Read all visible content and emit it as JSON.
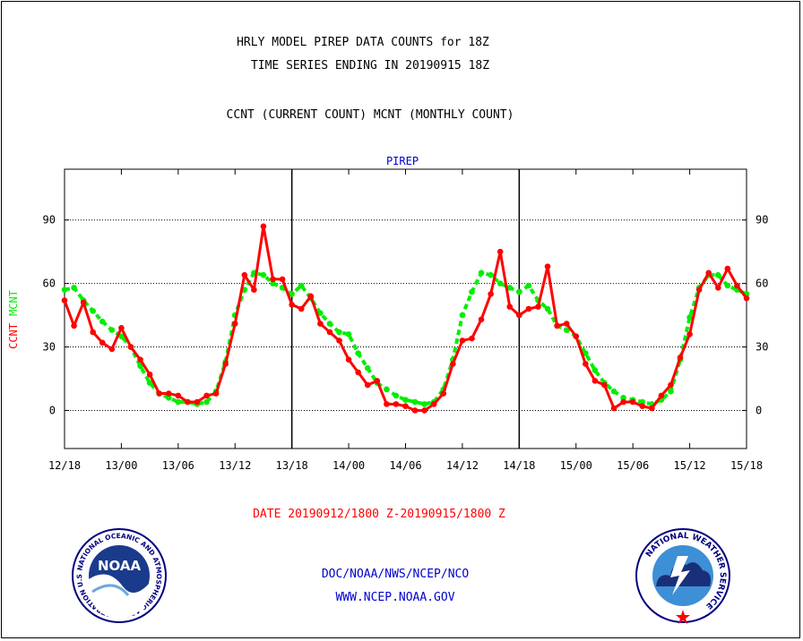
{
  "header": {
    "title_line1": "HRLY MODEL PIREP DATA COUNTS for 18Z",
    "title_line2": "TIME SERIES ENDING IN 20190915 18Z",
    "legend_line": "CCNT (CURRENT COUNT) MCNT (MONTHLY COUNT)"
  },
  "footer": {
    "date_range": "DATE 20190912/1800 Z-20190915/1800 Z",
    "org_line": "DOC/NOAA/NWS/NCEP/NCO",
    "url_line": "WWW.NCEP.NOAA.GOV"
  },
  "logos": {
    "noaa_left": {
      "label": "NOAA",
      "ring_text": "NATIONAL OCEANIC AND ATMOSPHERIC ADMINISTRATION  U.S. DEPARTMENT OF COMMERCE"
    },
    "nws_right": {
      "ring_text": "NATIONAL WEATHER SERVICE"
    }
  },
  "colors": {
    "ccnt": "#ff0000",
    "mcnt": "#00ee00",
    "title": "#000000",
    "panel_label": "#0000cc",
    "date_text": "#ff0000",
    "footer_text": "#0000cc"
  },
  "chart_data": {
    "type": "line",
    "title": "PIREP",
    "ylabel_left_1": "CCNT",
    "ylabel_left_2": "MCNT",
    "ylim": [
      -18,
      114
    ],
    "yticks": [
      0,
      30,
      60,
      90
    ],
    "grid": true,
    "x_ticks": [
      "12/18",
      "13/00",
      "13/06",
      "13/12",
      "13/18",
      "14/00",
      "14/06",
      "14/12",
      "14/18",
      "15/00",
      "15/06",
      "15/12",
      "15/18"
    ],
    "x_hours": [
      0,
      6,
      12,
      18,
      24,
      30,
      36,
      42,
      48,
      54,
      60,
      66,
      72
    ],
    "x_range_hours": [
      0,
      72
    ],
    "x_label": "",
    "series": [
      {
        "name": "CCNT",
        "color": "#ff0000",
        "x_hours": [
          0,
          1,
          2,
          3,
          4,
          5,
          6,
          7,
          8,
          9,
          10,
          11,
          12,
          13,
          14,
          15,
          16,
          17,
          18,
          19,
          20,
          21,
          22,
          23,
          24,
          25,
          26,
          27,
          28,
          29,
          30,
          31,
          32,
          33,
          34,
          35,
          36,
          37,
          38,
          39,
          40,
          41,
          42,
          43,
          44,
          45,
          46,
          47,
          48,
          49,
          50,
          51,
          52,
          53,
          54,
          55,
          56,
          57,
          58,
          59,
          60,
          61,
          62,
          63,
          64,
          65,
          66,
          67,
          68,
          69,
          70,
          71,
          72
        ],
        "values": [
          52,
          40,
          51,
          37,
          32,
          29,
          39,
          30,
          24,
          17,
          8,
          8,
          7,
          4,
          4,
          7,
          8,
          22,
          41,
          64,
          57,
          87,
          62,
          62,
          50,
          48,
          54,
          41,
          37,
          33,
          24,
          18,
          12,
          14,
          3,
          3,
          2,
          0,
          0,
          3,
          8,
          22,
          33,
          34,
          43,
          55,
          75,
          49,
          45,
          48,
          49,
          68,
          40,
          41,
          35,
          22,
          14,
          12,
          1,
          4,
          4,
          2,
          1,
          7,
          12,
          25,
          36,
          57,
          65,
          58,
          67,
          59,
          53
        ]
      },
      {
        "name": "MCNT",
        "color": "#00ee00",
        "x_hours": [
          0,
          1,
          2,
          3,
          4,
          5,
          6,
          7,
          8,
          9,
          10,
          11,
          12,
          13,
          14,
          15,
          16,
          17,
          18,
          19,
          20,
          21,
          22,
          23,
          24,
          25,
          26,
          27,
          28,
          29,
          30,
          31,
          32,
          33,
          34,
          35,
          36,
          37,
          38,
          39,
          40,
          41,
          42,
          43,
          44,
          45,
          46,
          47,
          48,
          49,
          50,
          51,
          52,
          53,
          54,
          55,
          56,
          57,
          58,
          59,
          60,
          61,
          62,
          63,
          64,
          65,
          66,
          67,
          68,
          69,
          70,
          71,
          72
        ],
        "values": [
          57,
          58,
          52,
          47,
          42,
          38,
          35,
          30,
          21,
          13,
          8,
          6,
          4,
          4,
          3,
          4,
          9,
          23,
          45,
          57,
          65,
          64,
          60,
          58,
          55,
          59,
          53,
          46,
          41,
          37,
          36,
          27,
          20,
          13,
          10,
          7,
          5,
          4,
          3,
          4,
          10,
          24,
          45,
          56,
          65,
          64,
          60,
          58,
          56,
          59,
          52,
          48,
          40,
          38,
          35,
          27,
          19,
          13,
          9,
          6,
          5,
          4,
          3,
          5,
          9,
          24,
          44,
          58,
          64,
          64,
          59,
          57,
          55
        ]
      }
    ]
  }
}
